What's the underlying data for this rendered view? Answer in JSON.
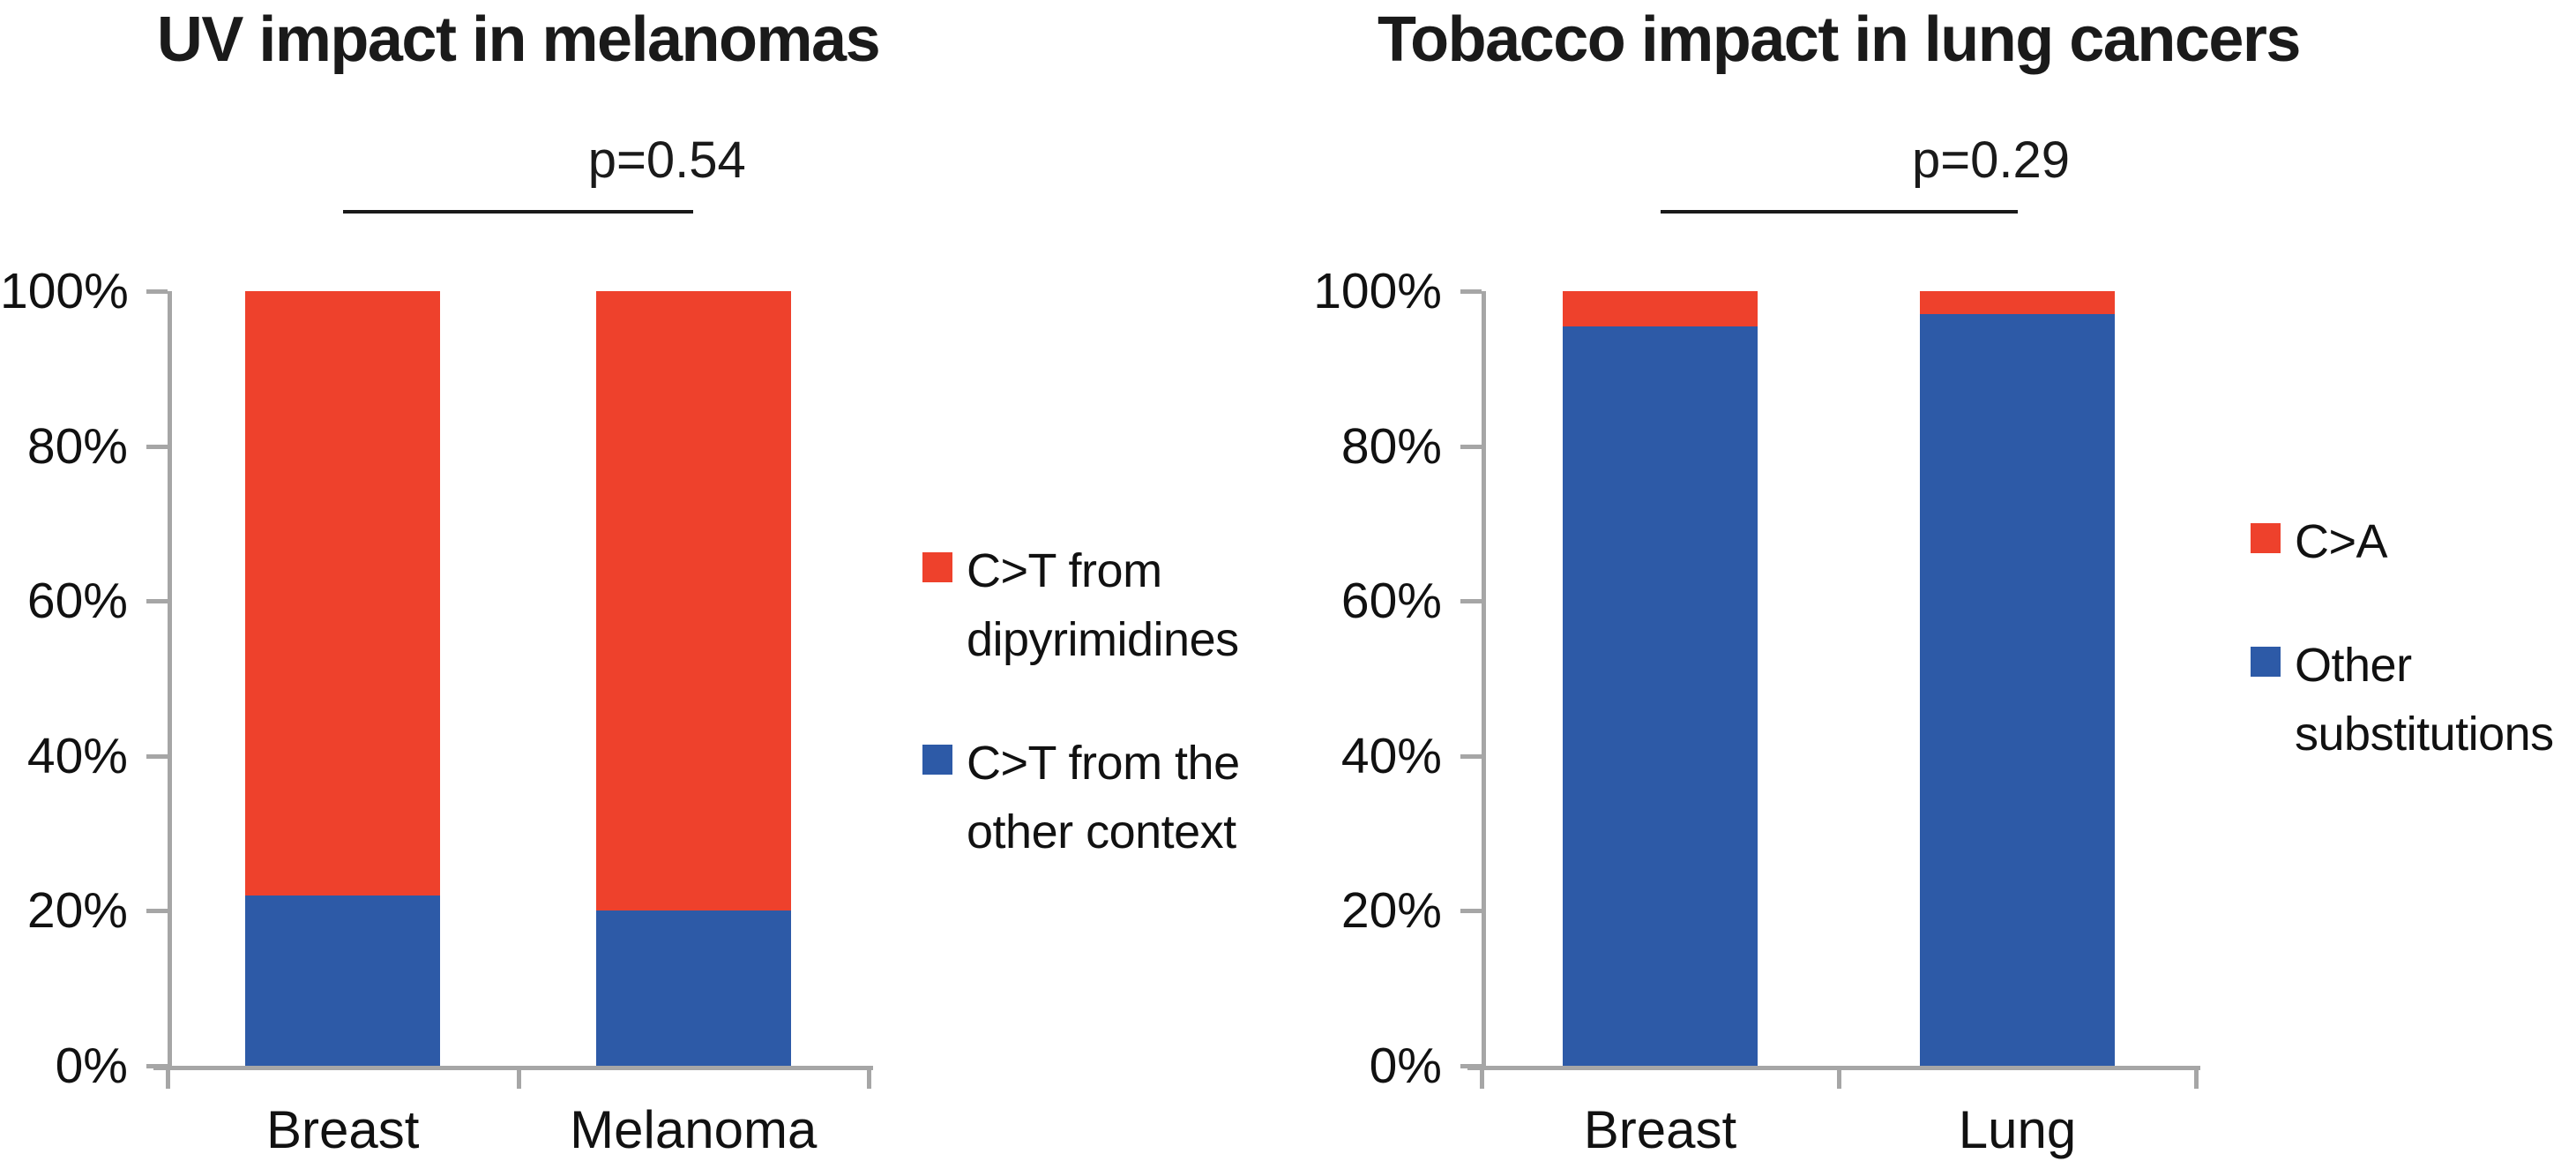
{
  "figure": {
    "background": "#ffffff",
    "text_color": "#1a1a1a",
    "axis_color": "#a6a6a6"
  },
  "chart_data": [
    {
      "type": "bar",
      "stacked": true,
      "orientation": "vertical",
      "title": "UV impact in melanomas",
      "annotation": {
        "label": "p=0.54",
        "connects": [
          "Breast",
          "Melanoma"
        ]
      },
      "categories": [
        "Breast",
        "Melanoma"
      ],
      "series": [
        {
          "name": "C>T from dipyrimidines",
          "color": "#ee412c",
          "values": [
            78,
            80
          ],
          "legend_lines": [
            "C>T from",
            "dipyrimidines"
          ]
        },
        {
          "name": "C>T from the other context",
          "color": "#2d5aa7",
          "values": [
            22,
            20
          ],
          "legend_lines": [
            "C>T from the",
            "other context"
          ]
        }
      ],
      "y_ticks": [
        "0%",
        "20%",
        "40%",
        "60%",
        "80%",
        "100%"
      ],
      "ylim": [
        0,
        100
      ],
      "unit": "%",
      "grid": false,
      "legend_position": "right"
    },
    {
      "type": "bar",
      "stacked": true,
      "orientation": "vertical",
      "title": "Tobacco impact in lung cancers",
      "annotation": {
        "label": "p=0.29",
        "connects": [
          "Breast",
          "Lung"
        ]
      },
      "categories": [
        "Breast",
        "Lung"
      ],
      "series": [
        {
          "name": "C>A",
          "color": "#ee412c",
          "values": [
            4.5,
            3
          ],
          "legend_lines": [
            "C>A"
          ]
        },
        {
          "name": "Other substitutions",
          "color": "#2d5aa7",
          "values": [
            95.5,
            97
          ],
          "legend_lines": [
            "Other",
            "substitutions"
          ]
        }
      ],
      "y_ticks": [
        "0%",
        "20%",
        "40%",
        "60%",
        "80%",
        "100%"
      ],
      "ylim": [
        0,
        100
      ],
      "unit": "%",
      "grid": false,
      "legend_position": "right"
    }
  ]
}
